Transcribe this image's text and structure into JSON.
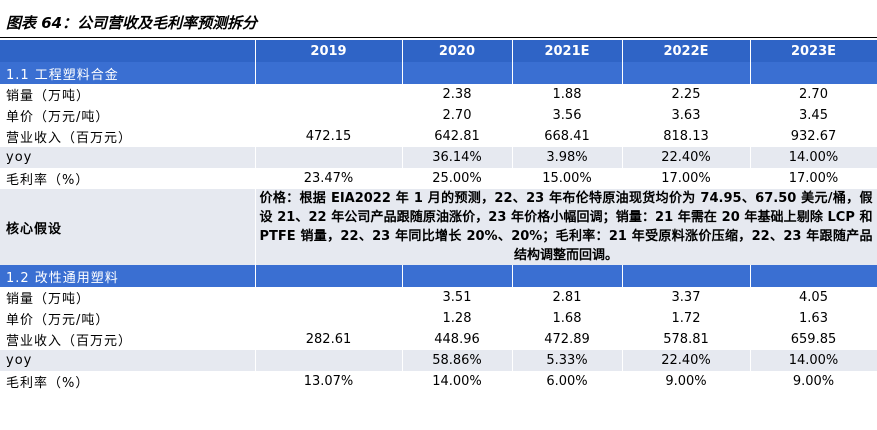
{
  "title": "图表 64：公司营收及毛利率预测拆分",
  "table": {
    "columns": [
      "2019",
      "2020",
      "2021E",
      "2022E",
      "2023E"
    ],
    "sections": [
      {
        "name": "1.1 工程塑料合金",
        "rows": [
          {
            "label": "销量（万吨）",
            "values": [
              null,
              "2.38",
              "1.88",
              "2.25",
              "2.70"
            ]
          },
          {
            "label": "单价（万元/吨）",
            "values": [
              null,
              "2.70",
              "3.56",
              "3.63",
              "3.45"
            ]
          },
          {
            "label": "营业收入（百万元）",
            "values": [
              "472.15",
              "642.81",
              "668.41",
              "818.13",
              "932.67"
            ]
          },
          {
            "label": "yoy",
            "values": [
              null,
              "36.14%",
              "3.98%",
              "22.40%",
              "14.00%"
            ]
          },
          {
            "label": "毛利率（%）",
            "values": [
              "23.47%",
              "25.00%",
              "15.00%",
              "17.00%",
              "17.00%"
            ]
          }
        ],
        "note": {
          "label": "核心假设",
          "text": "价格：根据 EIA2022 年 1 月的预测，22、23 年布伦特原油现货均价为 74.95、67.50 美元/桶，假设 21、22 年公司产品跟随原油涨价，23 年价格小幅回调；销量：21 年需在 20 年基础上剔除 LCP 和 PTFE 销量，22、23 年同比增长 20%、20%；毛利率：21 年受原料涨价压缩，22、23 年跟随产品结构调整而回调。"
        }
      },
      {
        "name": "1.2 改性通用塑料",
        "rows": [
          {
            "label": "销量（万吨）",
            "values": [
              null,
              "3.51",
              "2.81",
              "3.37",
              "4.05"
            ]
          },
          {
            "label": "单价（万元/吨）",
            "values": [
              null,
              "1.28",
              "1.68",
              "1.72",
              "1.63"
            ]
          },
          {
            "label": "营业收入（百万元）",
            "values": [
              "282.61",
              "448.96",
              "472.89",
              "578.81",
              "659.85"
            ]
          },
          {
            "label": "yoy",
            "values": [
              null,
              "58.86%",
              "5.33%",
              "22.40%",
              "14.00%"
            ]
          },
          {
            "label": "毛利率（%）",
            "values": [
              "13.07%",
              "14.00%",
              "6.00%",
              "9.00%",
              "9.00%"
            ]
          }
        ]
      }
    ]
  }
}
